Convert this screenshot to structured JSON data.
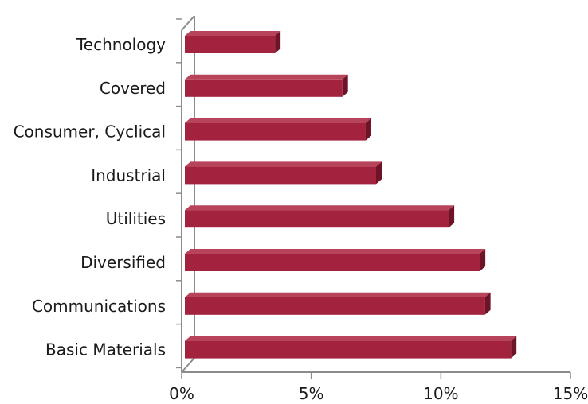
{
  "chart_data": {
    "type": "bar",
    "orientation": "horizontal",
    "style": "3d",
    "categories": [
      "Technology",
      "Covered",
      "Consumer, Cyclical",
      "Industrial",
      "Utilities",
      "Diversified",
      "Communications",
      "Basic Materials"
    ],
    "values": [
      3.6,
      6.2,
      7.1,
      7.5,
      10.3,
      11.5,
      11.7,
      12.7
    ],
    "xlim": [
      0,
      15
    ],
    "x_ticks": [
      0,
      5,
      10,
      15
    ],
    "x_tick_labels": [
      "0%",
      "5%",
      "10%",
      "15%"
    ],
    "title": "",
    "xlabel": "",
    "ylabel": "",
    "grid": false,
    "legend": "none",
    "colors": {
      "bar_front": "#a3233f",
      "bar_top": "#b8445c",
      "bar_side": "#6e1428",
      "axis": "#8c8c8c"
    }
  }
}
